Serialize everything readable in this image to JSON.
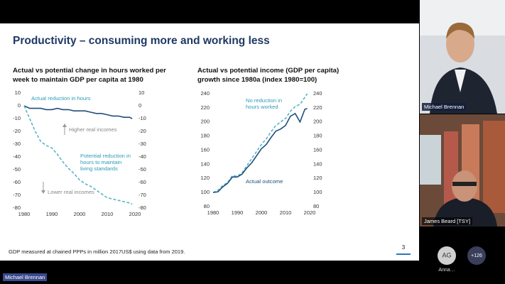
{
  "slide": {
    "title": "Productivity – consuming more and working less",
    "footnote": "GDP measured at chained PPPs in million 2017US$ using data from 2019.",
    "page_number": "3"
  },
  "chart_data": [
    {
      "type": "line",
      "title": "Actual vs potential change in hours worked per week to maintain GDP per capita at 1980",
      "x": [
        1980,
        1982,
        1984,
        1986,
        1988,
        1990,
        1992,
        1994,
        1996,
        1998,
        2000,
        2002,
        2004,
        2006,
        2008,
        2010,
        2012,
        2014,
        2016,
        2018,
        2019
      ],
      "xlim": [
        1980,
        2020
      ],
      "xticks": [
        1980,
        1990,
        2000,
        2010,
        2020
      ],
      "ylim": [
        -80,
        10
      ],
      "yticks": [
        -80,
        -70,
        -60,
        -50,
        -40,
        -30,
        -20,
        -10,
        0,
        10
      ],
      "y2lim": [
        -80,
        10
      ],
      "y2ticks": [
        -80,
        -70,
        -60,
        -50,
        -40,
        -30,
        -20,
        -10,
        0,
        10
      ],
      "series": [
        {
          "name": "Actual reduction in hours",
          "color": "#1f4e79",
          "style": "solid",
          "values": [
            0,
            -2,
            -2,
            -2,
            -3,
            -3,
            -2,
            -3,
            -3,
            -4,
            -4,
            -4,
            -5,
            -6,
            -6,
            -7,
            -8,
            -8,
            -9,
            -9,
            -10
          ]
        },
        {
          "name": "Potential reduction in hours to maintain living standards",
          "color": "#5ab4c8",
          "style": "dashed",
          "values": [
            0,
            -10,
            -20,
            -28,
            -31,
            -33,
            -38,
            -44,
            -49,
            -53,
            -58,
            -61,
            -63,
            -66,
            -69,
            -72,
            -73,
            -74,
            -75,
            -76,
            -77
          ]
        }
      ],
      "annotations": [
        "Higher real incomes",
        "Lower real incomes"
      ]
    },
    {
      "type": "line",
      "title": "Actual vs potential income (GDP per capita) growth since 1980a (index 1980=100)",
      "x": [
        1980,
        1982,
        1984,
        1986,
        1988,
        1990,
        1992,
        1994,
        1996,
        1998,
        2000,
        2002,
        2004,
        2006,
        2008,
        2010,
        2012,
        2014,
        2016,
        2018,
        2019
      ],
      "xlim": [
        1980,
        2020
      ],
      "xticks": [
        1980,
        1990,
        2000,
        2010,
        2020
      ],
      "ylim": [
        80,
        240
      ],
      "yticks": [
        80,
        100,
        120,
        140,
        160,
        180,
        200,
        220,
        240
      ],
      "y2lim": [
        80,
        240
      ],
      "y2ticks": [
        80,
        100,
        120,
        140,
        160,
        180,
        200,
        220,
        240
      ],
      "series": [
        {
          "name": "No reduction in hours worked",
          "color": "#5ab4c8",
          "style": "dashed",
          "values": [
            100,
            103,
            110,
            114,
            124,
            123,
            128,
            138,
            148,
            158,
            168,
            176,
            186,
            195,
            200,
            205,
            215,
            222,
            225,
            235,
            240
          ]
        },
        {
          "name": "Actual outcome",
          "color": "#1f4e79",
          "style": "solid",
          "values": [
            100,
            101,
            108,
            113,
            122,
            122,
            126,
            135,
            142,
            152,
            162,
            168,
            178,
            187,
            190,
            195,
            208,
            212,
            200,
            218,
            219
          ]
        }
      ]
    }
  ],
  "participants": [
    {
      "name": "Michael Brennan"
    },
    {
      "name": "James Beard [TSY]"
    },
    {
      "initials": "AG",
      "name": "Anna…"
    }
  ],
  "overflow_count": "+126",
  "presenter": "Michael Brennan"
}
